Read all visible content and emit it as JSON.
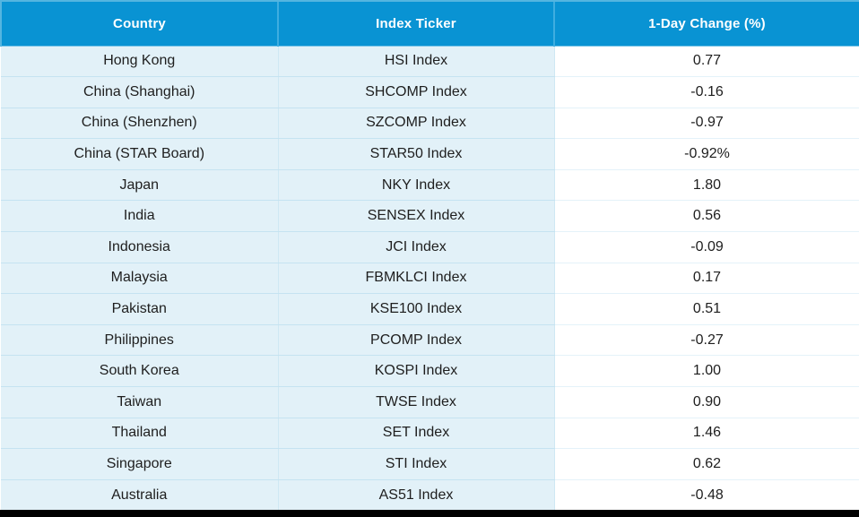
{
  "colors": {
    "header_bg": "#0993d3",
    "header_border": "#54b5e0",
    "header_text": "#ffffff",
    "row_bg": "#e2f1f8",
    "row_divider": "#c5e3f1",
    "change_col_bg": "#ffffff",
    "change_col_divider": "#e4f2f9",
    "body_text": "#1e1e1e",
    "bottom_bar": "#000000"
  },
  "chart_data": {
    "type": "table",
    "columns": [
      "Country",
      "Index Ticker",
      "1-Day Change (%)"
    ],
    "rows": [
      [
        "Hong Kong",
        "HSI Index",
        "0.77"
      ],
      [
        "China (Shanghai)",
        "SHCOMP Index",
        "-0.16"
      ],
      [
        "China (Shenzhen)",
        "SZCOMP Index",
        "-0.97"
      ],
      [
        "China (STAR Board)",
        "STAR50 Index",
        "-0.92%"
      ],
      [
        "Japan",
        "NKY Index",
        "1.80"
      ],
      [
        "India",
        "SENSEX Index",
        "0.56"
      ],
      [
        "Indonesia",
        "JCI Index",
        "-0.09"
      ],
      [
        "Malaysia",
        "FBMKLCI Index",
        "0.17"
      ],
      [
        "Pakistan",
        "KSE100 Index",
        "0.51"
      ],
      [
        "Philippines",
        "PCOMP Index",
        "-0.27"
      ],
      [
        "South Korea",
        "KOSPI Index",
        "1.00"
      ],
      [
        "Taiwan",
        "TWSE Index",
        "0.90"
      ],
      [
        "Thailand",
        "SET Index",
        "1.46"
      ],
      [
        "Singapore",
        "STI Index",
        "0.62"
      ],
      [
        "Australia",
        "AS51 Index",
        "-0.48"
      ]
    ]
  }
}
